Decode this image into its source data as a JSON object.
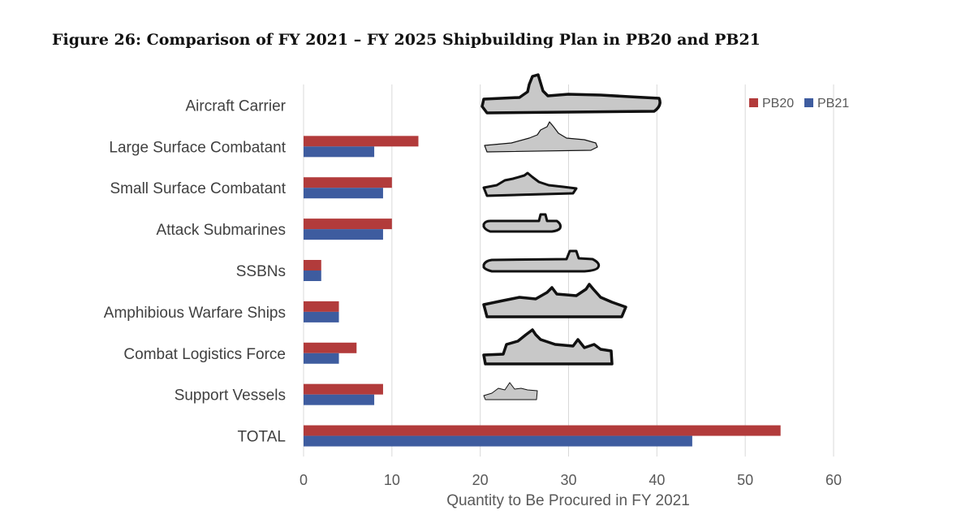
{
  "figure_title": "Figure 26: Comparison of FY 2021 – FY 2025 Shipbuilding Plan in PB20 and PB21",
  "colors": {
    "pb20": "#B23B3B",
    "pb21": "#3E5C9F",
    "grid": "#D9D9D9",
    "ship_fill": "#C8C8C8",
    "ship_stroke": "#111111"
  },
  "chart_data": {
    "type": "bar",
    "orientation": "horizontal",
    "title": "Figure 26: Comparison of FY 2021 – FY 2025 Shipbuilding Plan in PB20 and PB21",
    "xlabel": "Quantity to Be Procured in FY 2021",
    "ylabel": "",
    "xlim": [
      0,
      60
    ],
    "xticks": [
      0,
      10,
      20,
      30,
      40,
      50,
      60
    ],
    "grid": true,
    "legend_position": "top-right",
    "categories": [
      "Aircraft Carrier",
      "Large Surface Combatant",
      "Small Surface Combatant",
      "Attack Submarines",
      "SSBNs",
      "Amphibious Warfare Ships",
      "Combat Logistics Force",
      "Support Vessels",
      "TOTAL"
    ],
    "series": [
      {
        "name": "PB20",
        "values": [
          0,
          13,
          10,
          10,
          2,
          4,
          6,
          9,
          54
        ]
      },
      {
        "name": "PB21",
        "values": [
          0,
          8,
          9,
          9,
          2,
          4,
          4,
          8,
          44
        ]
      }
    ],
    "ship_icons": [
      "carrier-icon",
      "destroyer-icon",
      "frigate-icon",
      "attack-submarine-icon",
      "ssbn-icon",
      "amphibious-ship-icon",
      "logistics-ship-icon",
      "support-vessel-icon"
    ]
  }
}
